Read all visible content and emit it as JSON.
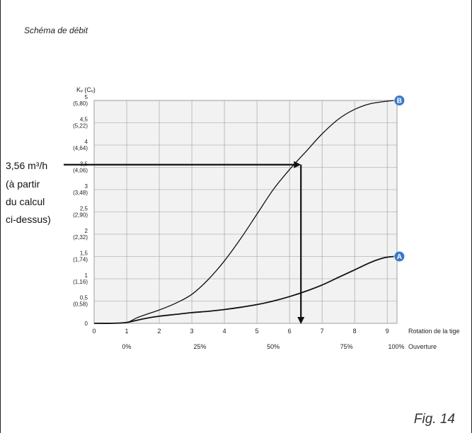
{
  "caption": "Schéma de débit",
  "figure_label": "Fig. 14",
  "annotation": {
    "line1": "3,56 m³/h",
    "line2": "(à partir",
    "line3": "du calcul",
    "line4": "ci-dessus)"
  },
  "chart_data": {
    "type": "line",
    "ylabel": "Kᵥ (Cᵥ)",
    "xlabel": "Rotation de la tige",
    "x2label": "Ouverture",
    "xlim": [
      0,
      9.3
    ],
    "ylim": [
      0,
      5
    ],
    "x_ticks": [
      "0",
      "1",
      "2",
      "3",
      "4",
      "5",
      "6",
      "7",
      "8",
      "9"
    ],
    "percent_ticks": [
      {
        "x": 1,
        "label": "0%"
      },
      {
        "x": 3.25,
        "label": "25%"
      },
      {
        "x": 5.5,
        "label": "50%"
      },
      {
        "x": 7.75,
        "label": "75%"
      },
      {
        "x": 10,
        "label": "100%"
      }
    ],
    "y_ticks": [
      {
        "y": 0,
        "kv": "0",
        "cv": ""
      },
      {
        "y": 0.5,
        "kv": "0,5",
        "cv": "(0,58)"
      },
      {
        "y": 1,
        "kv": "1",
        "cv": "(1,16)"
      },
      {
        "y": 1.5,
        "kv": "1,5",
        "cv": "(1,74)"
      },
      {
        "y": 2,
        "kv": "2",
        "cv": "(2,32)"
      },
      {
        "y": 2.5,
        "kv": "2,5",
        "cv": "(2,90)"
      },
      {
        "y": 3,
        "kv": "3",
        "cv": "(3,48)"
      },
      {
        "y": 3.5,
        "kv": "3,5",
        "cv": "(4,06)"
      },
      {
        "y": 4,
        "kv": "4",
        "cv": "(4,64)"
      },
      {
        "y": 4.5,
        "kv": "4,5",
        "cv": "(5,22)"
      },
      {
        "y": 5,
        "kv": "5",
        "cv": "(5,80)"
      }
    ],
    "grid": true,
    "series": [
      {
        "name": "B",
        "marker_color": "#3a78c9",
        "points": [
          [
            0,
            0
          ],
          [
            0.5,
            0
          ],
          [
            1,
            0.02
          ],
          [
            1.3,
            0.12
          ],
          [
            1.6,
            0.2
          ],
          [
            2,
            0.3
          ],
          [
            2.5,
            0.45
          ],
          [
            3,
            0.65
          ],
          [
            3.5,
            0.98
          ],
          [
            4,
            1.4
          ],
          [
            4.5,
            1.9
          ],
          [
            5,
            2.45
          ],
          [
            5.5,
            3.0
          ],
          [
            6,
            3.45
          ],
          [
            6.5,
            3.85
          ],
          [
            7,
            4.25
          ],
          [
            7.5,
            4.58
          ],
          [
            8,
            4.8
          ],
          [
            8.5,
            4.93
          ],
          [
            9.2,
            5.0
          ]
        ]
      },
      {
        "name": "A",
        "marker_color": "#3a78c9",
        "points": [
          [
            0,
            0
          ],
          [
            0.5,
            0
          ],
          [
            1,
            0.02
          ],
          [
            1.5,
            0.1
          ],
          [
            2,
            0.16
          ],
          [
            2.5,
            0.2
          ],
          [
            3,
            0.24
          ],
          [
            3.5,
            0.27
          ],
          [
            4,
            0.31
          ],
          [
            4.5,
            0.36
          ],
          [
            5,
            0.42
          ],
          [
            5.5,
            0.5
          ],
          [
            6,
            0.6
          ],
          [
            6.5,
            0.72
          ],
          [
            7,
            0.86
          ],
          [
            7.5,
            1.03
          ],
          [
            8,
            1.2
          ],
          [
            8.5,
            1.37
          ],
          [
            8.9,
            1.47
          ],
          [
            9.2,
            1.5
          ]
        ]
      }
    ],
    "reading": {
      "y_value": 3.56,
      "x_value": 6.35
    }
  }
}
